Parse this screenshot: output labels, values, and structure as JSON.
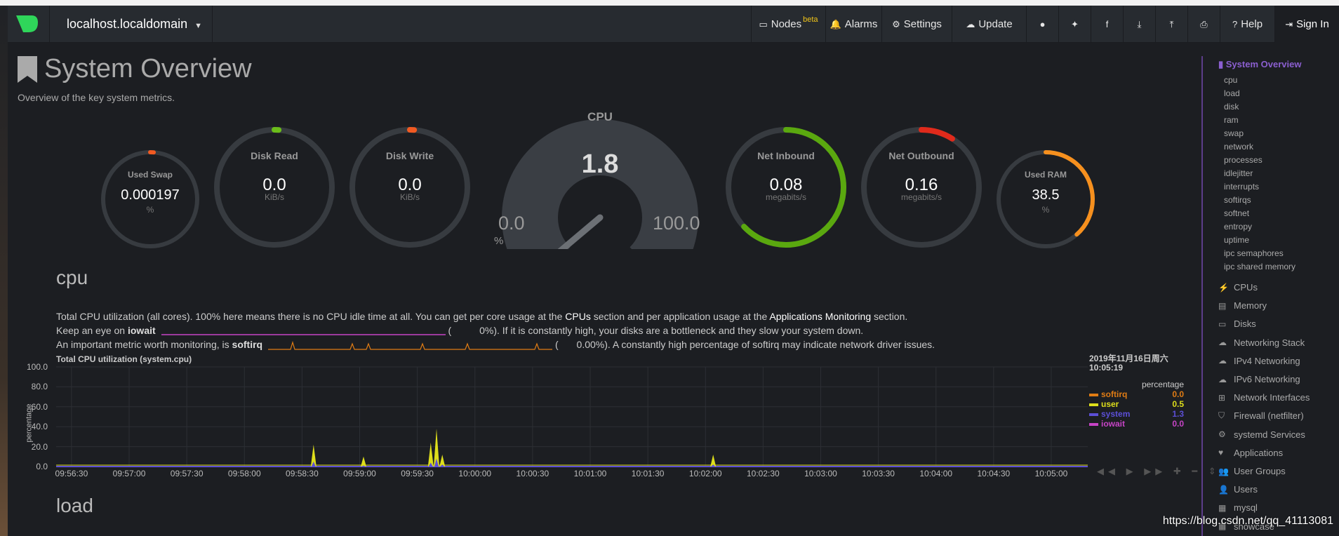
{
  "navbar": {
    "host": "localhost.localdomain",
    "items": [
      {
        "label": "Nodes",
        "badge": "beta",
        "icon": "monitor-icon"
      },
      {
        "label": "Alarms",
        "icon": "bell-icon"
      },
      {
        "label": "Settings",
        "icon": "gear-icon"
      },
      {
        "label": "Update",
        "icon": "cloud-download-icon"
      },
      {
        "label": "",
        "icon": "github-icon"
      },
      {
        "label": "",
        "icon": "twitter-icon"
      },
      {
        "label": "",
        "icon": "facebook-icon"
      },
      {
        "label": "",
        "icon": "download-icon"
      },
      {
        "label": "",
        "icon": "upload-icon"
      },
      {
        "label": "",
        "icon": "print-icon"
      },
      {
        "label": "Help",
        "icon": "question-icon"
      },
      {
        "label": "Sign In",
        "icon": "signin-icon"
      }
    ]
  },
  "page": {
    "title": "System Overview",
    "subtitle": "Overview of the key system metrics."
  },
  "gauges": [
    {
      "title": "Used Swap",
      "value": "0.000197",
      "unit": "%",
      "level": 1.97e-06,
      "color": "#f15a22"
    },
    {
      "title": "Disk Read",
      "value": "0.0",
      "unit": "KiB/s",
      "level": 0,
      "color": "#6bbd1a"
    },
    {
      "title": "Disk Write",
      "value": "0.0",
      "unit": "KiB/s",
      "level": 0,
      "color": "#f15a22"
    },
    {
      "title": "Net Inbound",
      "value": "0.08",
      "unit": "megabits/s",
      "level": 0.63,
      "color": "#5aa80f"
    },
    {
      "title": "Net Outbound",
      "value": "0.16",
      "unit": "megabits/s",
      "level": 0.09,
      "color": "#e02a1b"
    },
    {
      "title": "Used RAM",
      "value": "38.5",
      "unit": "%",
      "level": 0.385,
      "color": "#f6901e"
    }
  ],
  "cpu_gauge": {
    "title": "CPU",
    "value": "1.8",
    "min": "0.0",
    "max": "100.0",
    "unit": "%",
    "level": 0.018
  },
  "cpu_section": {
    "heading": "cpu",
    "line1_a": "Total CPU utilization (all cores). 100% here means there is no CPU idle time at all. You can get per core usage at the ",
    "line1_b": "CPUs",
    "line1_c": " section and per application usage at the ",
    "line1_d": "Applications Monitoring",
    "line1_e": " section.",
    "line2_a": "Keep an eye on ",
    "line2_b": "iowait",
    "line2_c": "0%). If it is constantly high, your disks are a bottleneck and they slow your system down.",
    "line3_a": "An important metric worth monitoring, is ",
    "line3_b": "softirq",
    "line3_c": "0.00%). A constantly high percentage of softirq may indicate network driver issues."
  },
  "load_section": {
    "heading": "load"
  },
  "chart_data": {
    "type": "area",
    "title": "Total CPU utilization (system.cpu)",
    "ylabel": "percentage",
    "ylim": [
      0,
      100
    ],
    "yticks": [
      "100.0",
      "80.0",
      "60.0",
      "40.0",
      "20.0",
      "0.0"
    ],
    "xticks": [
      "09:56:30",
      "09:57:00",
      "09:57:30",
      "09:58:00",
      "09:58:30",
      "09:59:00",
      "09:59:30",
      "10:00:00",
      "10:00:30",
      "10:01:00",
      "10:01:30",
      "10:02:00",
      "10:02:30",
      "10:03:00",
      "10:03:30",
      "10:04:00",
      "10:04:30",
      "10:05:00"
    ],
    "spikes": [
      {
        "time": "09:58:36",
        "user": 17,
        "system": 5
      },
      {
        "time": "09:59:02",
        "user": 9,
        "system": 1
      },
      {
        "time": "09:59:37",
        "user": 20,
        "system": 4
      },
      {
        "time": "09:59:40",
        "user": 30,
        "system": 8
      },
      {
        "time": "09:59:43",
        "user": 10,
        "system": 2
      },
      {
        "time": "10:02:04",
        "user": 10,
        "system": 2
      }
    ],
    "series": [
      {
        "name": "softirq",
        "color": "#e07c14",
        "value": "0.0"
      },
      {
        "name": "user",
        "color": "#dede1b",
        "value": "0.5"
      },
      {
        "name": "system",
        "color": "#5c4fd6",
        "value": "1.3"
      },
      {
        "name": "iowait",
        "color": "#c644c6",
        "value": "0.0"
      }
    ],
    "legend_date": "2019年11月16日周六",
    "legend_time": "10:05:19",
    "legend_unit": "percentage"
  },
  "sidebar": {
    "active": "System Overview",
    "subs": [
      "cpu",
      "load",
      "disk",
      "ram",
      "swap",
      "network",
      "processes",
      "idlejitter",
      "interrupts",
      "softirqs",
      "softnet",
      "entropy",
      "uptime",
      "ipc semaphores",
      "ipc shared memory"
    ],
    "groups": [
      {
        "label": "CPUs",
        "icon": "bolt-icon"
      },
      {
        "label": "Memory",
        "icon": "memory-icon"
      },
      {
        "label": "Disks",
        "icon": "hdd-icon"
      },
      {
        "label": "Networking Stack",
        "icon": "cloud-icon"
      },
      {
        "label": "IPv4 Networking",
        "icon": "cloud-icon"
      },
      {
        "label": "IPv6 Networking",
        "icon": "cloud-icon"
      },
      {
        "label": "Network Interfaces",
        "icon": "sitemap-icon"
      },
      {
        "label": "Firewall (netfilter)",
        "icon": "shield-icon"
      },
      {
        "label": "systemd Services",
        "icon": "cogs-icon"
      },
      {
        "label": "Applications",
        "icon": "heartbeat-icon"
      },
      {
        "label": "User Groups",
        "icon": "users-icon"
      },
      {
        "label": "Users",
        "icon": "user-icon"
      },
      {
        "label": "mysql",
        "icon": "table-icon"
      },
      {
        "label": "showcase",
        "icon": "table-icon"
      }
    ]
  },
  "watermark": "https://blog.csdn.net/qq_41113081"
}
